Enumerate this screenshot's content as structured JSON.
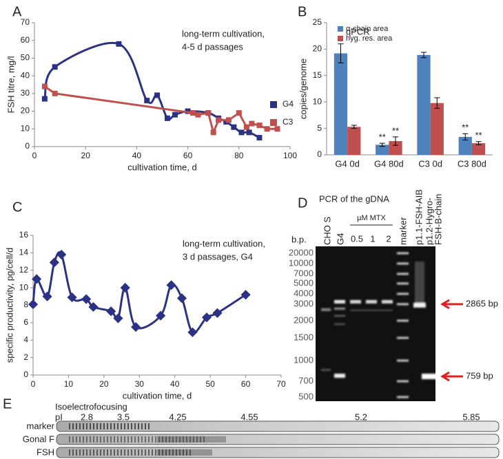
{
  "chart_data": [
    {
      "type": "line",
      "panel": "A",
      "xlabel": "cultivation time, d",
      "ylabel": "FSH titre, mg/l",
      "annotation": [
        "long-term cultivation,",
        "4-5 d passages"
      ],
      "xlim": [
        0,
        100
      ],
      "xticks": [
        0,
        20,
        40,
        60,
        80,
        100
      ],
      "ylim": [
        0,
        70
      ],
      "yticks": [
        0,
        10,
        20,
        30,
        40,
        50,
        60,
        70
      ],
      "legend": "right",
      "series": [
        {
          "name": "G4",
          "color": "#2b3183",
          "marker": "square",
          "smooth": true,
          "x": [
            4,
            8,
            33,
            44,
            48,
            52,
            55,
            60,
            68,
            72,
            75,
            78,
            81,
            84,
            88
          ],
          "values": [
            27,
            45,
            58,
            26,
            29,
            16,
            18,
            20,
            19,
            16,
            14,
            11,
            8,
            8,
            5
          ]
        },
        {
          "name": "C3",
          "color": "#c0504d",
          "marker": "square",
          "smooth": false,
          "x": [
            4,
            8,
            62,
            64,
            68,
            70,
            72,
            76,
            80,
            83,
            85,
            88,
            91,
            95
          ],
          "values": [
            34,
            30,
            19,
            18,
            19,
            8,
            15,
            15,
            19,
            11,
            13,
            12,
            10,
            10
          ]
        }
      ]
    },
    {
      "type": "bar",
      "panel": "B",
      "title": "qPCR",
      "ylabel": "copies/genome",
      "categories": [
        "G4 0d",
        "G4 80d",
        "C3 0d",
        "C3 80d"
      ],
      "ylim": [
        0,
        25
      ],
      "yticks": [
        0,
        5,
        10,
        15,
        20,
        25
      ],
      "legend": "top-right",
      "series": [
        {
          "name": "α-chain area",
          "color": "#4f81bd",
          "values": [
            19.2,
            1.9,
            18.9,
            3.4
          ],
          "errors": [
            1.8,
            0.3,
            0.5,
            0.6
          ],
          "annotations": [
            null,
            "**",
            null,
            "**"
          ]
        },
        {
          "name": "hyg. res. area",
          "color": "#c0504d",
          "values": [
            5.3,
            2.6,
            9.8,
            2.2
          ],
          "errors": [
            0.3,
            0.8,
            1.0,
            0.3
          ],
          "annotations": [
            null,
            "**",
            null,
            "**"
          ]
        }
      ]
    },
    {
      "type": "line",
      "panel": "C",
      "xlabel": "cultivation time, d",
      "ylabel": "specific productivity, pg/cell/d",
      "annotation": [
        "long-term cultivation,",
        "3 d passages, G4"
      ],
      "xlim": [
        0,
        70
      ],
      "xticks": [
        0,
        10,
        20,
        30,
        40,
        50,
        60,
        70
      ],
      "ylim": [
        0,
        16
      ],
      "yticks": [
        0,
        2,
        4,
        6,
        8,
        10,
        12,
        14,
        16
      ],
      "series": [
        {
          "color": "#2b3183",
          "marker": "diamond",
          "smooth": true,
          "x": [
            0,
            1,
            4,
            6,
            8,
            11,
            15,
            17,
            22,
            24,
            26,
            29,
            36,
            39,
            42,
            45,
            49,
            52,
            60
          ],
          "values": [
            8.1,
            11,
            9,
            12.9,
            13.8,
            8.9,
            8.7,
            7.8,
            7.3,
            6.5,
            10,
            5.5,
            6.8,
            10.3,
            8.8,
            4.9,
            6.6,
            7.1,
            9.2
          ]
        }
      ]
    }
  ],
  "gel": {
    "panel": "D",
    "title": "PCR of the gDNA",
    "unit_label": "b.p.",
    "ladder": [
      20000,
      10000,
      7000,
      5000,
      4000,
      3000,
      2000,
      1500,
      1000,
      700,
      500
    ],
    "lanes": [
      "CHO S",
      "G4",
      "0.5",
      "1",
      "2",
      "marker",
      "p1.1-FSH-AIB",
      "p1.2-Hygro-",
      "FSH-B-chain"
    ],
    "lane_group": "µM MTX",
    "bands": [
      "2865 bp",
      "759 bp"
    ]
  },
  "ief": {
    "panel": "E",
    "title": "Isoelectrofocusing",
    "axis_label": "pI",
    "pI": [
      2.8,
      3.5,
      4.25,
      4.55,
      5.2,
      5.85
    ],
    "rows": [
      "marker",
      "Gonal F",
      "FSH"
    ]
  }
}
